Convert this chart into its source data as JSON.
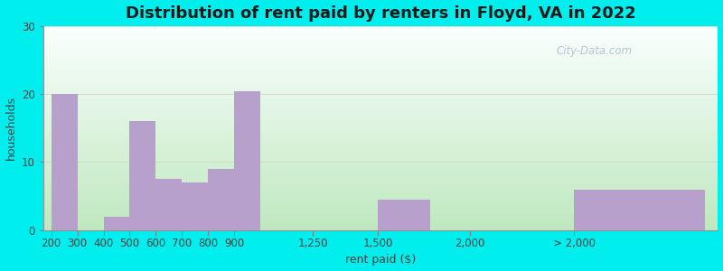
{
  "title": "Distribution of rent paid by renters in Floyd, VA in 2022",
  "xlabel": "rent paid ($)",
  "ylabel": "households",
  "bar_color": "#B8A0CC",
  "background_outer": "#00EEEE",
  "ylim": [
    0,
    30
  ],
  "yticks": [
    0,
    10,
    20,
    30
  ],
  "categories": [
    "200",
    "300",
    "400",
    "500",
    "600",
    "700",
    "800",
    "900",
    "1,250",
    "1,500",
    "2,000",
    "> 2,000"
  ],
  "values": [
    20,
    0,
    2,
    16,
    7.5,
    7,
    9,
    20.5,
    0,
    4.5,
    0,
    6
  ],
  "watermark": "City-Data.com",
  "title_fontsize": 13,
  "axis_label_fontsize": 9,
  "tick_fontsize": 8.5,
  "grad_bottom_color": "#C8EEC8",
  "grad_top_color": "#FAFFF8"
}
